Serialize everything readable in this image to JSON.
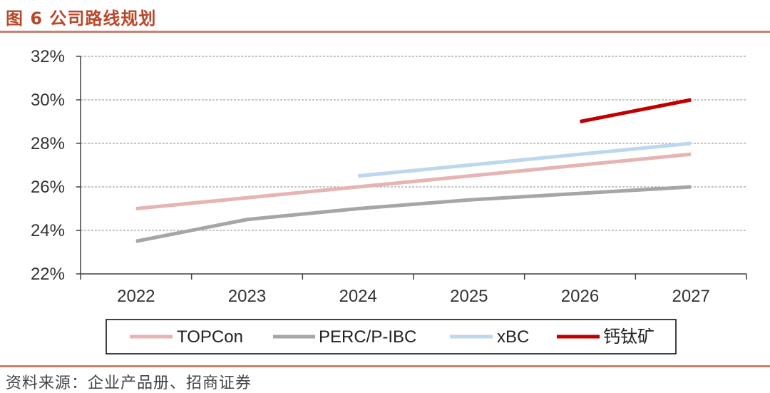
{
  "figure": {
    "title": "图 6  公司路线规划",
    "source": "资料来源：企业产品册、招商证券"
  },
  "colors": {
    "accent": "#b8482b",
    "TOPCon": "#e6b4b2",
    "PERC/P-IBC": "#a6a6a6",
    "xBC": "#bdd7ee",
    "钙钛矿": "#c00000"
  },
  "chart_data": {
    "type": "line",
    "title": "公司路线规划",
    "xlabel": "",
    "ylabel": "",
    "categories": [
      "2022",
      "2023",
      "2024",
      "2025",
      "2026",
      "2027"
    ],
    "ylim": [
      22,
      32
    ],
    "yticks": [
      "22%",
      "24%",
      "26%",
      "28%",
      "30%",
      "32%"
    ],
    "grid": true,
    "legend_position": "bottom",
    "series": [
      {
        "name": "TOPCon",
        "values": [
          25.0,
          25.5,
          26.0,
          26.5,
          27.0,
          27.5
        ]
      },
      {
        "name": "PERC/P-IBC",
        "values": [
          23.5,
          24.5,
          25.0,
          25.4,
          25.7,
          26.0
        ]
      },
      {
        "name": "xBC",
        "values": [
          null,
          null,
          26.5,
          27.0,
          27.5,
          28.0
        ]
      },
      {
        "name": "钙钛矿",
        "values": [
          null,
          null,
          null,
          null,
          29.0,
          30.0
        ]
      }
    ]
  }
}
